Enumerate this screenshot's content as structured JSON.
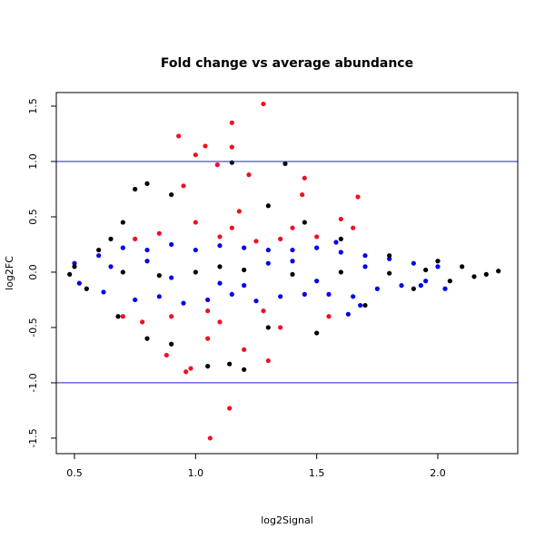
{
  "chart_data": {
    "type": "scatter",
    "title": "Fold change vs average abundance",
    "x_label": "log2Signal",
    "y_label": "log2FC",
    "xlim": [
      0.425,
      2.33
    ],
    "ylim": [
      -1.64,
      1.623
    ],
    "xticks": [
      0.5,
      {
        "value": 1,
        "label": "1.0"
      },
      1.5,
      {
        "value": 2,
        "label": "2.0"
      }
    ],
    "yticks": [
      -1.5,
      {
        "value": -1,
        "label": "-1.0"
      },
      -0.5,
      {
        "value": 0,
        "label": "0.0"
      },
      0.5,
      {
        "value": 1,
        "label": "1.0"
      },
      1.5
    ],
    "hlines": [
      -1,
      1
    ],
    "hline_color": "#2222cc",
    "grid": false,
    "series": [
      {
        "color": "#0000ee",
        "x": [
          0.5,
          0.52,
          0.6,
          0.62,
          0.7,
          0.75,
          0.8,
          0.85,
          0.9,
          0.95,
          1.0,
          1.05,
          1.1,
          1.15,
          1.2,
          1.25,
          1.3,
          1.35,
          1.4,
          1.45,
          1.5,
          1.55,
          1.6,
          1.65,
          1.7,
          1.75,
          1.8,
          1.85,
          1.9,
          1.95,
          2.0,
          0.65,
          0.9,
          1.3,
          1.5,
          1.7,
          1.1,
          0.8,
          1.4,
          1.2,
          1.63,
          1.68,
          1.58,
          2.03,
          1.93
        ],
        "y": [
          0.08,
          -0.1,
          0.15,
          -0.18,
          0.22,
          -0.25,
          0.2,
          -0.22,
          0.25,
          -0.28,
          0.2,
          -0.25,
          0.24,
          -0.2,
          0.22,
          -0.26,
          0.2,
          -0.22,
          0.2,
          -0.2,
          0.22,
          -0.2,
          0.18,
          -0.22,
          0.15,
          -0.15,
          0.12,
          -0.12,
          0.08,
          -0.08,
          0.05,
          0.05,
          -0.05,
          0.08,
          -0.08,
          0.05,
          -0.1,
          0.1,
          0.1,
          -0.12,
          -0.38,
          -0.3,
          0.27,
          -0.15,
          -0.12
        ]
      },
      {
        "color": "#000000",
        "x": [
          1.15,
          1.37,
          1.14,
          1.2,
          1.05,
          0.75,
          0.8,
          0.9,
          0.7,
          0.65,
          0.6,
          0.5,
          0.48,
          0.55,
          0.68,
          0.8,
          0.9,
          1.3,
          1.45,
          1.6,
          1.8,
          2.0,
          2.1,
          2.25,
          2.2,
          2.05,
          1.9,
          1.7,
          1.5,
          1.3,
          1.0,
          1.2,
          0.7,
          1.4,
          1.6,
          1.8,
          0.85,
          1.1,
          1.95,
          2.15
        ],
        "y": [
          0.99,
          0.98,
          -0.83,
          -0.88,
          -0.85,
          0.75,
          0.8,
          0.7,
          0.45,
          0.3,
          0.2,
          0.05,
          -0.02,
          -0.15,
          -0.4,
          -0.6,
          -0.65,
          0.6,
          0.45,
          0.3,
          0.15,
          0.1,
          0.05,
          0.01,
          -0.02,
          -0.08,
          -0.15,
          -0.3,
          -0.55,
          -0.5,
          0.0,
          0.02,
          0.0,
          -0.02,
          0.0,
          -0.01,
          -0.03,
          0.05,
          0.02,
          -0.04
        ]
      },
      {
        "color": "#ee1122",
        "x": [
          1.28,
          1.15,
          0.93,
          1.04,
          1.0,
          1.15,
          1.09,
          1.14,
          1.06,
          0.96,
          1.22,
          1.45,
          1.67,
          1.6,
          1.44,
          0.98,
          1.3,
          0.88,
          1.2,
          1.05,
          0.85,
          1.1,
          1.25,
          1.35,
          0.9,
          1.1,
          1.28,
          0.78,
          1.0,
          1.18,
          0.95,
          1.55,
          1.4,
          1.65,
          0.75,
          1.5,
          0.7,
          1.35,
          1.15,
          1.05
        ],
        "y": [
          1.52,
          1.35,
          1.23,
          1.14,
          1.06,
          1.13,
          0.97,
          -1.23,
          -1.5,
          -0.9,
          0.88,
          0.85,
          0.68,
          0.48,
          0.7,
          -0.87,
          -0.8,
          -0.75,
          -0.7,
          -0.6,
          0.35,
          0.32,
          0.28,
          0.3,
          -0.4,
          -0.45,
          -0.35,
          -0.45,
          0.45,
          0.55,
          0.78,
          -0.4,
          0.4,
          0.4,
          0.3,
          0.32,
          -0.4,
          -0.5,
          0.4,
          -0.35
        ]
      }
    ]
  }
}
